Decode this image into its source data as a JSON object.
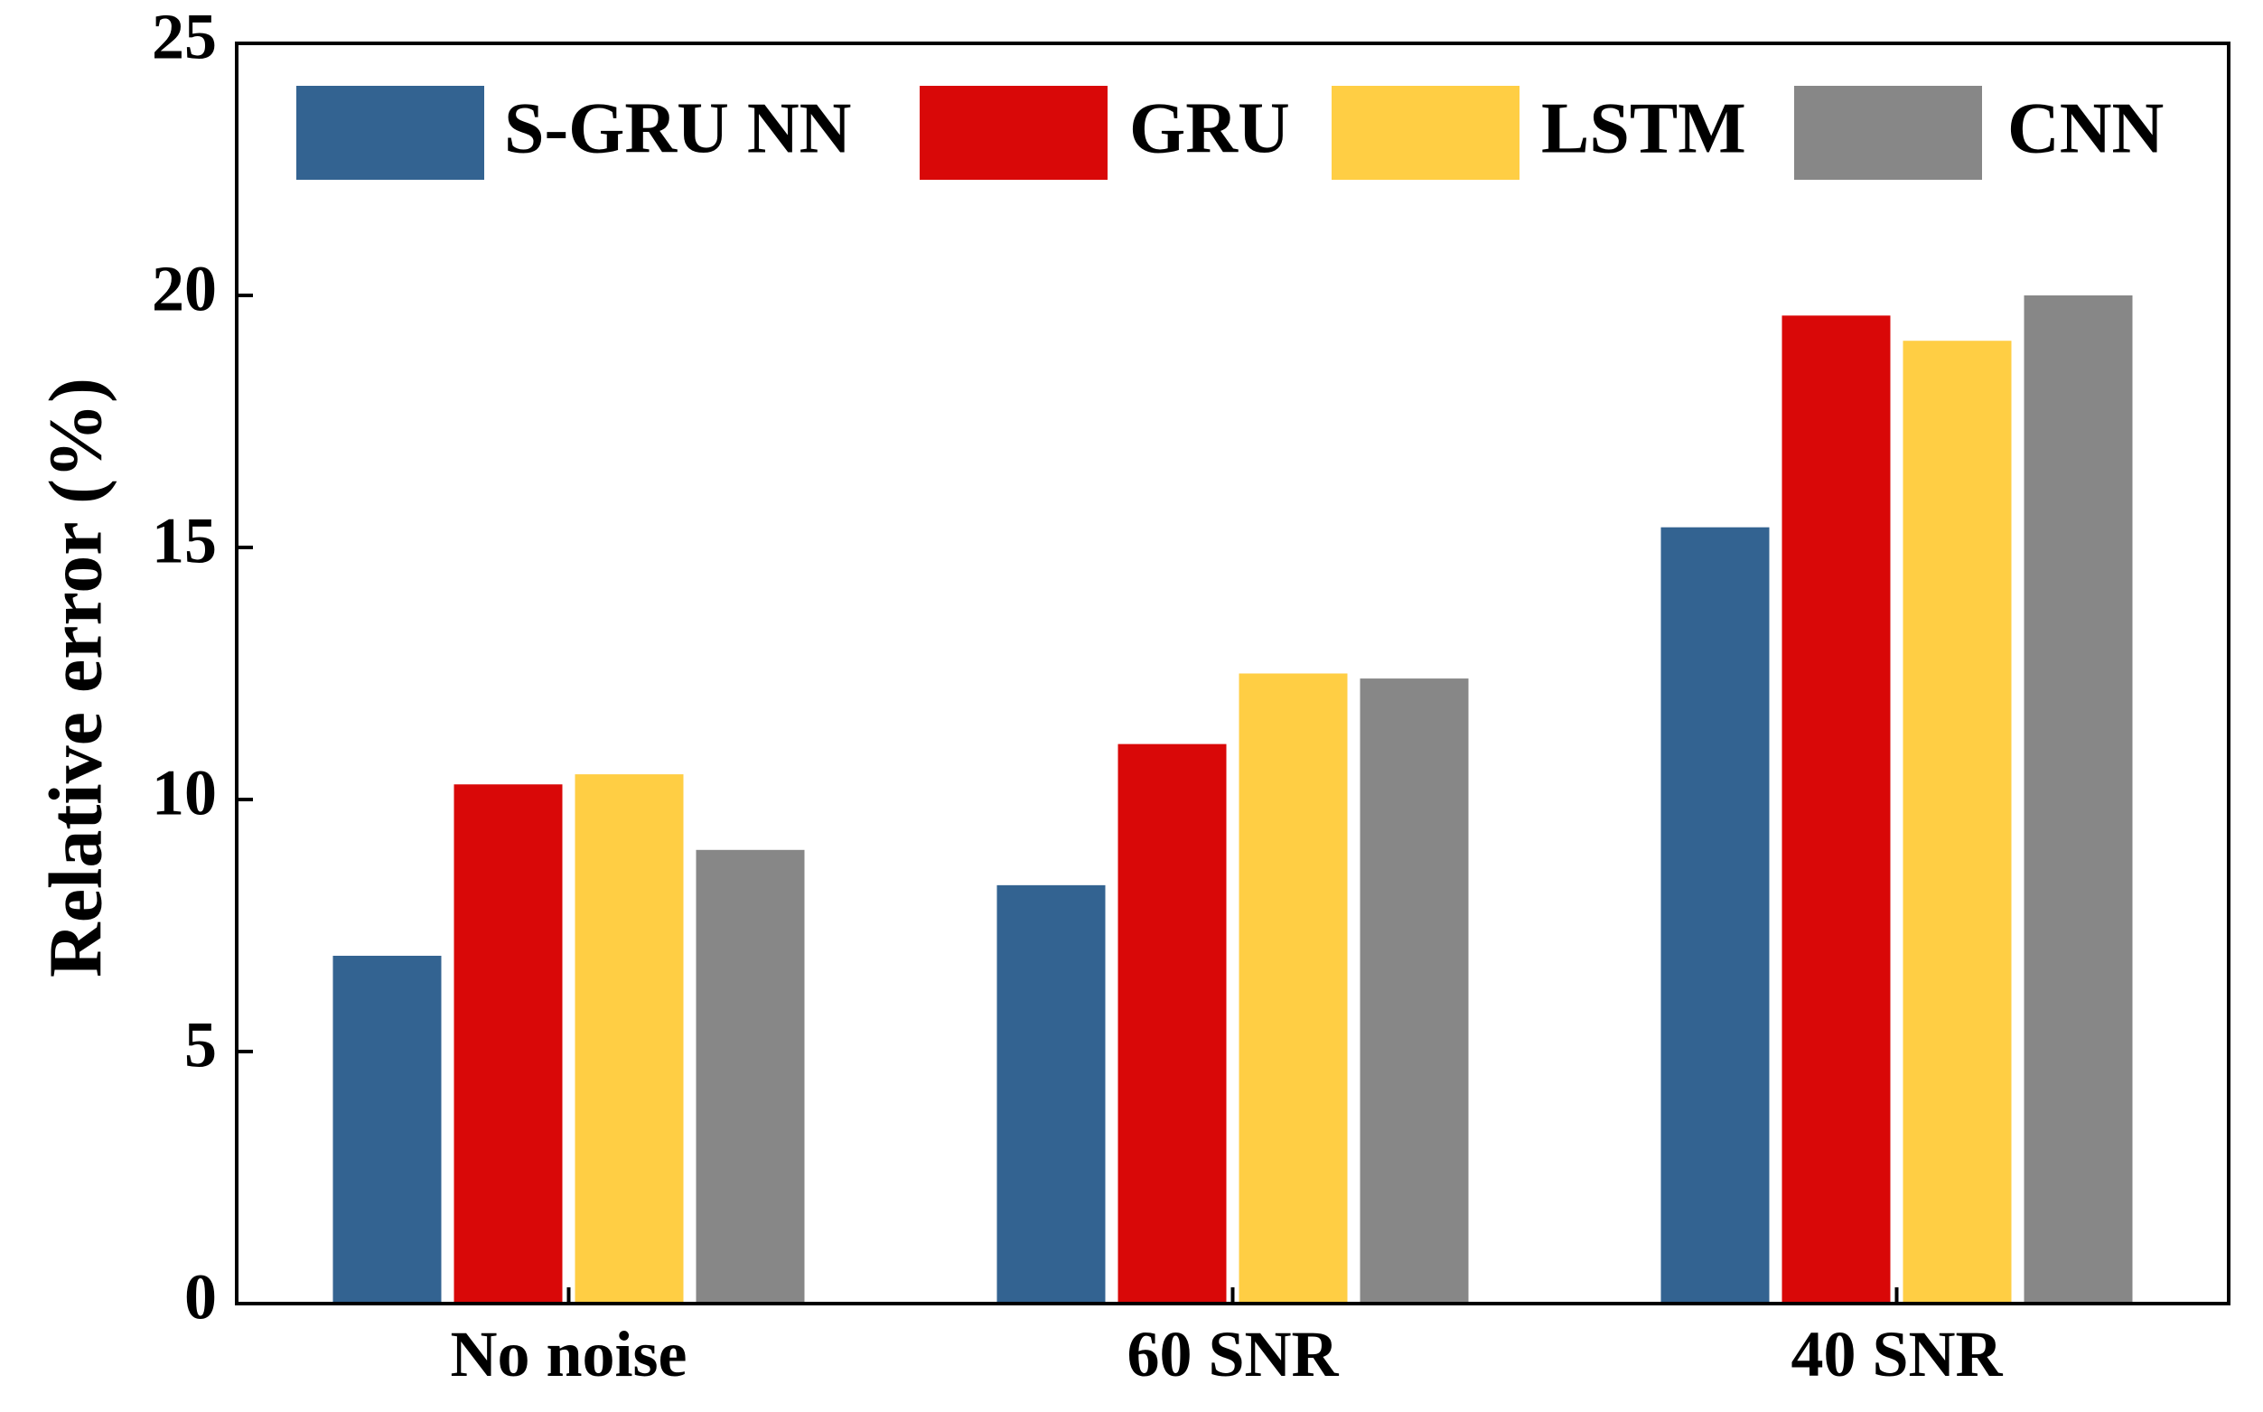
{
  "chart_data": {
    "type": "bar",
    "title": "",
    "xlabel": "",
    "ylabel": "Relative error (%)",
    "ylim": [
      0,
      25
    ],
    "yticks": [
      0,
      5,
      10,
      15,
      20,
      25
    ],
    "grid": false,
    "legend_position": "top",
    "categories": [
      "No noise",
      "60 SNR",
      "40 SNR"
    ],
    "series": [
      {
        "name": "S-GRU NN",
        "color": "#336391",
        "values": [
          6.9,
          8.3,
          15.4
        ]
      },
      {
        "name": "GRU",
        "color": "#D90808",
        "values": [
          10.3,
          11.1,
          19.6
        ]
      },
      {
        "name": "LSTM",
        "color": "#FFCE44",
        "values": [
          10.5,
          12.5,
          19.1
        ]
      },
      {
        "name": "CNN",
        "color": "#878787",
        "values": [
          9.0,
          12.4,
          20.0
        ]
      }
    ]
  }
}
